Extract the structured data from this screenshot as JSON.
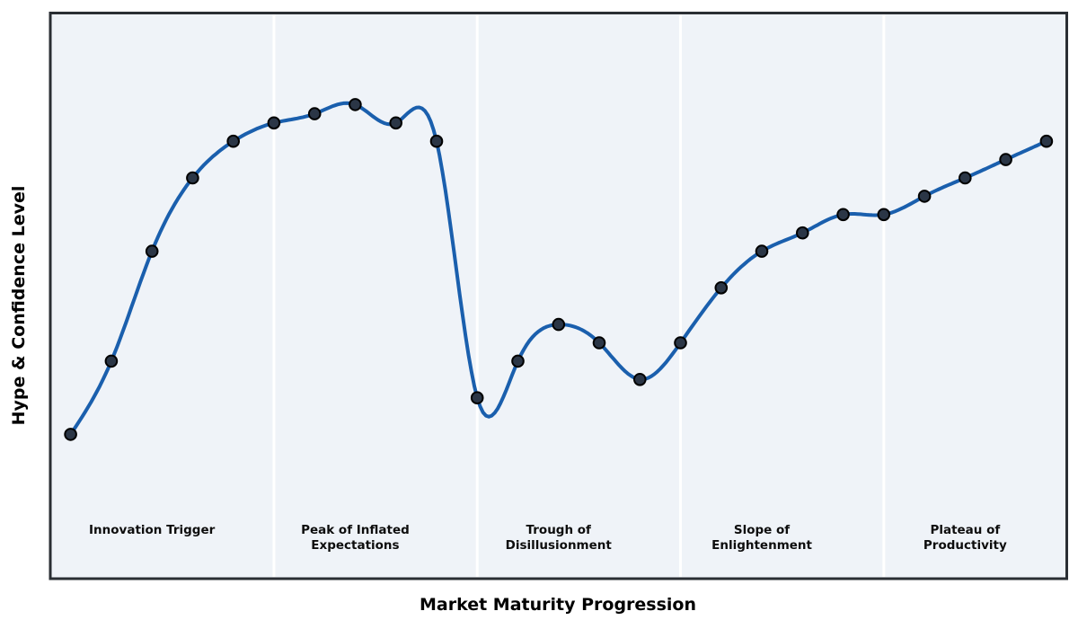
{
  "chart_data": {
    "type": "line",
    "title": "",
    "xlabel": "Market Maturity Progression",
    "ylabel": "Hype & Confidence Level",
    "x": [
      0,
      1,
      2,
      3,
      4,
      5,
      6,
      7,
      8,
      9,
      10,
      11,
      12,
      13,
      14,
      15,
      16,
      17,
      18,
      19,
      20,
      21,
      22,
      23,
      24
    ],
    "y": [
      20,
      36,
      60,
      76,
      84,
      88,
      90,
      92,
      88,
      84,
      28,
      36,
      44,
      40,
      32,
      40,
      52,
      60,
      64,
      68,
      68,
      72,
      76,
      80,
      84
    ],
    "xlim": [
      -0.5,
      24.5
    ],
    "ylim": [
      -11.5,
      112
    ],
    "grid": false,
    "legend": "none",
    "smoothing": "cubic-spline",
    "marker": "circle",
    "phases": [
      {
        "label": "Innovation Trigger",
        "x_start": -0.5,
        "x_end": 5,
        "label_x": 2
      },
      {
        "label": "Peak of Inflated\nExpectations",
        "x_start": 5,
        "x_end": 10,
        "label_x": 7
      },
      {
        "label": "Trough of\nDisillusionment",
        "x_start": 10,
        "x_end": 15,
        "label_x": 12
      },
      {
        "label": "Slope of\nEnlightenment",
        "x_start": 15,
        "x_end": 20,
        "label_x": 17
      },
      {
        "label": "Plateau of\nProductivity",
        "x_start": 20,
        "x_end": 24.5,
        "label_x": 22
      }
    ],
    "colors": {
      "line": "#1a5fad",
      "marker_fill": "#2b3646",
      "marker_edge": "#000000",
      "plot_bg": "#eff3f8",
      "divider": "#ffffff",
      "border": "#2a2e33",
      "text": "#0d0d0d"
    }
  }
}
